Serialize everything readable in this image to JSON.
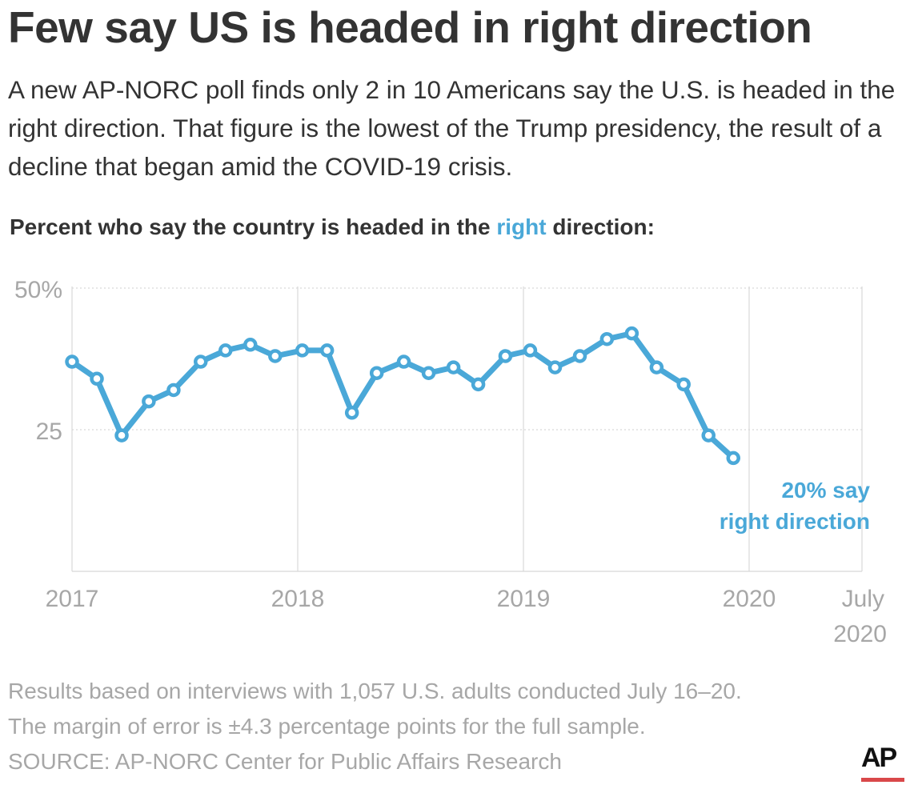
{
  "headline": "Few say US is headed in right direction",
  "intro": "A new AP-NORC poll finds only 2 in 10 Americans say the U.S. is headed in the right direction. That figure is the lowest of the Trump presidency, the result of a decline that began amid the COVID-19 crisis.",
  "subtitle": {
    "before": "Percent who say the country is headed in the ",
    "accent": "right",
    "after": " direction:"
  },
  "colors": {
    "series": "#4aa8d8",
    "text": "#333333",
    "muted": "#a7a7a7",
    "ap_red": "#d9484a"
  },
  "chart_data": {
    "type": "line",
    "y_ticks": [
      "50%",
      "25"
    ],
    "ylim": [
      0,
      50
    ],
    "x_ticks": [
      {
        "label": "2017",
        "x": 2017.0
      },
      {
        "label": "2018",
        "x": 2018.0
      },
      {
        "label": "2019",
        "x": 2019.0
      },
      {
        "label": "2020",
        "x": 2020.0
      },
      {
        "label": "July",
        "label2": "2020",
        "x": 2020.5
      }
    ],
    "grid": true,
    "series": [
      {
        "points": [
          {
            "x": 2017.0,
            "y": 37
          },
          {
            "x": 2017.11,
            "y": 34
          },
          {
            "x": 2017.22,
            "y": 24
          },
          {
            "x": 2017.34,
            "y": 30
          },
          {
            "x": 2017.45,
            "y": 32
          },
          {
            "x": 2017.57,
            "y": 37
          },
          {
            "x": 2017.68,
            "y": 39
          },
          {
            "x": 2017.79,
            "y": 40
          },
          {
            "x": 2017.9,
            "y": 38
          },
          {
            "x": 2018.02,
            "y": 39
          },
          {
            "x": 2018.13,
            "y": 39
          },
          {
            "x": 2018.24,
            "y": 28
          },
          {
            "x": 2018.35,
            "y": 35
          },
          {
            "x": 2018.47,
            "y": 37
          },
          {
            "x": 2018.58,
            "y": 35
          },
          {
            "x": 2018.69,
            "y": 36
          },
          {
            "x": 2018.8,
            "y": 33
          },
          {
            "x": 2018.92,
            "y": 38
          },
          {
            "x": 2019.03,
            "y": 39
          },
          {
            "x": 2019.14,
            "y": 36
          },
          {
            "x": 2019.25,
            "y": 38
          },
          {
            "x": 2019.37,
            "y": 41
          },
          {
            "x": 2019.48,
            "y": 42
          },
          {
            "x": 2019.59,
            "y": 36
          },
          {
            "x": 2019.71,
            "y": 33
          },
          {
            "x": 2019.82,
            "y": 24
          },
          {
            "x": 2019.93,
            "y": 20
          }
        ]
      }
    ],
    "annotation": {
      "line1": "20% say",
      "line2": "right direction"
    }
  },
  "notes": {
    "line1": "Results based on interviews with 1,057 U.S. adults conducted July 16–20.",
    "line2": "The margin of error is ±4.3 percentage points for the full sample.",
    "source": "SOURCE: AP-NORC Center for Public Affairs Research"
  },
  "logo_text": "AP"
}
